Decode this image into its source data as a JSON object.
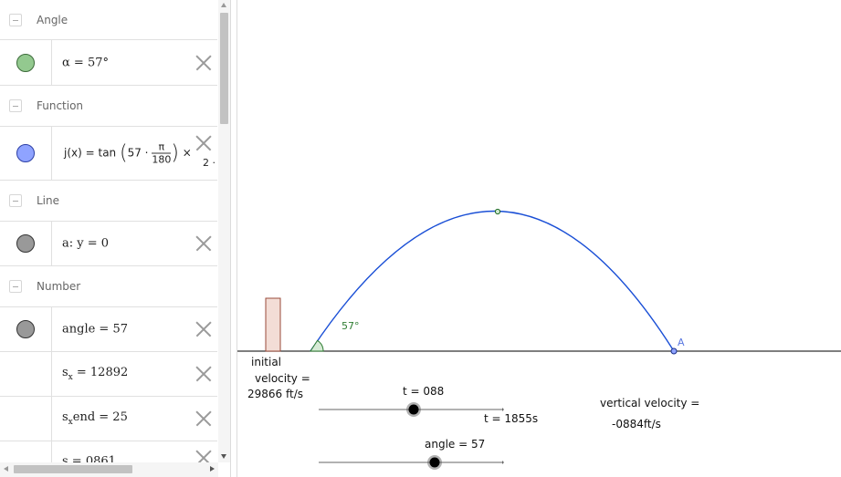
{
  "algebra": {
    "sections": {
      "angle": "Angle",
      "function": "Function",
      "line": "Line",
      "number": "Number"
    },
    "rows": {
      "alpha": {
        "name": "α",
        "value": "57°",
        "color": "#93c98f"
      },
      "function": {
        "lhs": "j(x)",
        "tan": "tan",
        "num": "π",
        "den": "180",
        "coef": "57 ·",
        "tail": "× ",
        "cut": "2 ·",
        "color": "#8fa3ff"
      },
      "line": {
        "text": "a: y = 0",
        "color": "#999999"
      },
      "angle_num": {
        "text": "angle = 57",
        "color": "#999999"
      },
      "sx": {
        "base": "s",
        "sub": "x",
        "rest": " = 12892"
      },
      "sxend": {
        "base": "s",
        "sub": "x",
        "rest": "end = 25"
      },
      "partial": {
        "text": "s  = 0861"
      }
    }
  },
  "graphics": {
    "angle_label": "57°",
    "point_label": "A",
    "velocity_label_1": "initial",
    "velocity_label_2": "velocity =",
    "velocity_value": "29866 ft/s",
    "t_slider_label": "t = 088",
    "t_end_label": "t = 1855s",
    "angle_slider_label": "angle = 57",
    "vertical_velocity_label": "vertical velocity =",
    "vertical_velocity_value": "-0884ft/s",
    "colors": {
      "trajectory": "#1a4fd6",
      "angle_arc": "#2e7d32",
      "building_fill": "#f3ddd6",
      "building_stroke": "#9a4a3a",
      "axis": "#333333"
    }
  }
}
